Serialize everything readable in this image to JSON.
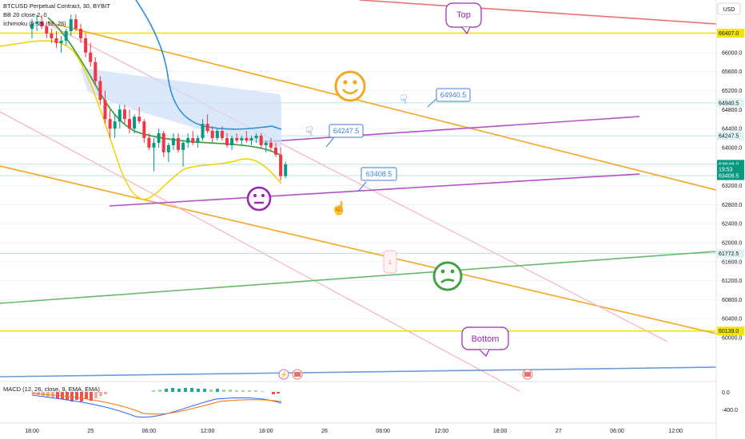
{
  "header": {
    "symbol": "BTCUSD Perpetual Contract, 30, BYBIT",
    "ind1": "BB 20 close 2, 0",
    "ind2": "Ichimoku (9, 26, 52, 26)",
    "currency": "USD"
  },
  "macd_label": "MACD (12, 26, close, 9, EMA, EMA)",
  "chart_data": {
    "type": "candlestick",
    "price_axis": {
      "min": 59800,
      "max": 66800,
      "ticks": [
        66000.0,
        65600.0,
        65200.0,
        64800.0,
        64400.0,
        64000.0,
        63600.0,
        63200.0,
        62800.0,
        62400.0,
        62000.0,
        61600.0,
        61200.0,
        60800.0,
        60400.0,
        60000.0
      ],
      "tick_labels": [
        "66000.0",
        "65600.0",
        "65200.0",
        "64800.0",
        "64400.0",
        "64000.0",
        "63600.0",
        "63200.0",
        "62800.0",
        "62400.0",
        "62000.0",
        "61600.0",
        "61200.0",
        "60800.0",
        "60400.0",
        "60000.0"
      ]
    },
    "time_axis": {
      "labels": [
        "18:00",
        "25",
        "06:00",
        "12:00",
        "18:00",
        "26",
        "06:00",
        "12:00",
        "18:00",
        "27",
        "06:00",
        "12:00"
      ],
      "bars": [
        0,
        12,
        24,
        36,
        48,
        60,
        72,
        84,
        96,
        108,
        120,
        132
      ]
    },
    "price_tags": [
      {
        "label": "66407.0",
        "price": 66407,
        "color": "#f5e400",
        "text": "#131722"
      },
      {
        "label": "64940.5",
        "price": 64940.5,
        "color": "#e1f4f4",
        "text": "#131722"
      },
      {
        "label": "64247.5",
        "price": 64247.5,
        "color": "#e1f4f4",
        "text": "#131722"
      },
      {
        "label": "63648.0",
        "price": 63648,
        "color": "#089981",
        "text": "#ffffff"
      },
      {
        "label": "19:53",
        "price": 63548,
        "color": "#089981",
        "text": "#ffffff"
      },
      {
        "label": "63408.5",
        "price": 63408.5,
        "color": "#089981",
        "text": "#ffffff"
      },
      {
        "label": "61772.5",
        "price": 61772.5,
        "color": "#e1f4f4",
        "text": "#131722"
      },
      {
        "label": "60139.0",
        "price": 60139,
        "color": "#f5e400",
        "text": "#131722"
      }
    ],
    "horizontal_levels": [
      {
        "price": 66407.0,
        "color": "#f5e400"
      },
      {
        "price": 64940.5,
        "color": "#bfe6e6"
      },
      {
        "price": 64247.5,
        "color": "#bfe6e6"
      },
      {
        "price": 63648.0,
        "color": "#bfe6e6"
      },
      {
        "price": 63408.5,
        "color": "#bfe6e6"
      },
      {
        "price": 61772.5,
        "color": "#bfe6e6"
      },
      {
        "price": 60139.0,
        "color": "#f5e400"
      }
    ],
    "callouts": [
      {
        "label": "64940.5",
        "bar": 78,
        "price": 65000
      },
      {
        "label": "64247.5",
        "bar": 63,
        "price": 64300
      },
      {
        "label": "63408.5",
        "bar": 70,
        "price": 63550
      }
    ],
    "bubbles": [
      {
        "label": "Top",
        "bar": 87,
        "price": 66650
      },
      {
        "label": "Bottom",
        "bar": 90,
        "price": 60270
      }
    ],
    "number_tag": "1",
    "candles": [
      [
        66500,
        66700,
        66300,
        66600
      ],
      [
        66600,
        66800,
        66450,
        66650
      ],
      [
        66650,
        66780,
        66500,
        66550
      ],
      [
        66550,
        66650,
        66300,
        66400
      ],
      [
        66400,
        66500,
        66200,
        66300
      ],
      [
        66300,
        66450,
        66100,
        66200
      ],
      [
        66200,
        66350,
        66000,
        66250
      ],
      [
        66250,
        66500,
        66150,
        66450
      ],
      [
        66450,
        66800,
        66350,
        66700
      ],
      [
        66700,
        66800,
        66450,
        66500
      ],
      [
        66500,
        66600,
        66200,
        66300
      ],
      [
        66300,
        66400,
        65900,
        66000
      ],
      [
        66000,
        66200,
        65700,
        65800
      ],
      [
        65800,
        65900,
        65300,
        65400
      ],
      [
        65400,
        65500,
        64900,
        65000
      ],
      [
        65000,
        65200,
        64500,
        64600
      ],
      [
        64600,
        64800,
        64200,
        64400
      ],
      [
        64400,
        64700,
        64200,
        64550
      ],
      [
        64550,
        64900,
        64400,
        64800
      ],
      [
        64800,
        64900,
        64500,
        64600
      ],
      [
        64600,
        64800,
        64300,
        64400
      ],
      [
        64400,
        64700,
        64300,
        64650
      ],
      [
        64650,
        64850,
        64500,
        64550
      ],
      [
        64550,
        64600,
        64100,
        64200
      ],
      [
        64200,
        64300,
        63950,
        64000
      ],
      [
        64000,
        64200,
        63500,
        64100
      ],
      [
        64100,
        64400,
        64000,
        64300
      ],
      [
        64300,
        64350,
        63800,
        63900
      ],
      [
        63900,
        64100,
        63700,
        64050
      ],
      [
        64050,
        64300,
        63950,
        64200
      ],
      [
        64200,
        64300,
        63900,
        63950
      ],
      [
        63950,
        64150,
        63600,
        64100
      ],
      [
        64100,
        64300,
        64000,
        64200
      ],
      [
        64200,
        64350,
        64050,
        64100
      ],
      [
        64100,
        64250,
        64000,
        64200
      ],
      [
        64200,
        64600,
        64150,
        64500
      ],
      [
        64500,
        64700,
        64300,
        64350
      ],
      [
        64350,
        64450,
        64100,
        64200
      ],
      [
        64200,
        64400,
        64150,
        64350
      ],
      [
        64350,
        64450,
        64150,
        64200
      ],
      [
        64200,
        64300,
        64000,
        64050
      ],
      [
        64050,
        64250,
        63950,
        64200
      ],
      [
        64200,
        64300,
        64100,
        64150
      ],
      [
        64150,
        64250,
        64050,
        64200
      ],
      [
        64200,
        64350,
        64100,
        64150
      ],
      [
        64150,
        64250,
        64050,
        64200
      ],
      [
        64200,
        64300,
        64100,
        64250
      ],
      [
        64250,
        64300,
        64000,
        64050
      ],
      [
        64050,
        64150,
        63900,
        64100
      ],
      [
        64100,
        64200,
        63950,
        64000
      ],
      [
        64000,
        64100,
        63800,
        63850
      ],
      [
        63850,
        64000,
        63300,
        63400
      ],
      [
        63400,
        63700,
        63350,
        63648
      ]
    ]
  }
}
